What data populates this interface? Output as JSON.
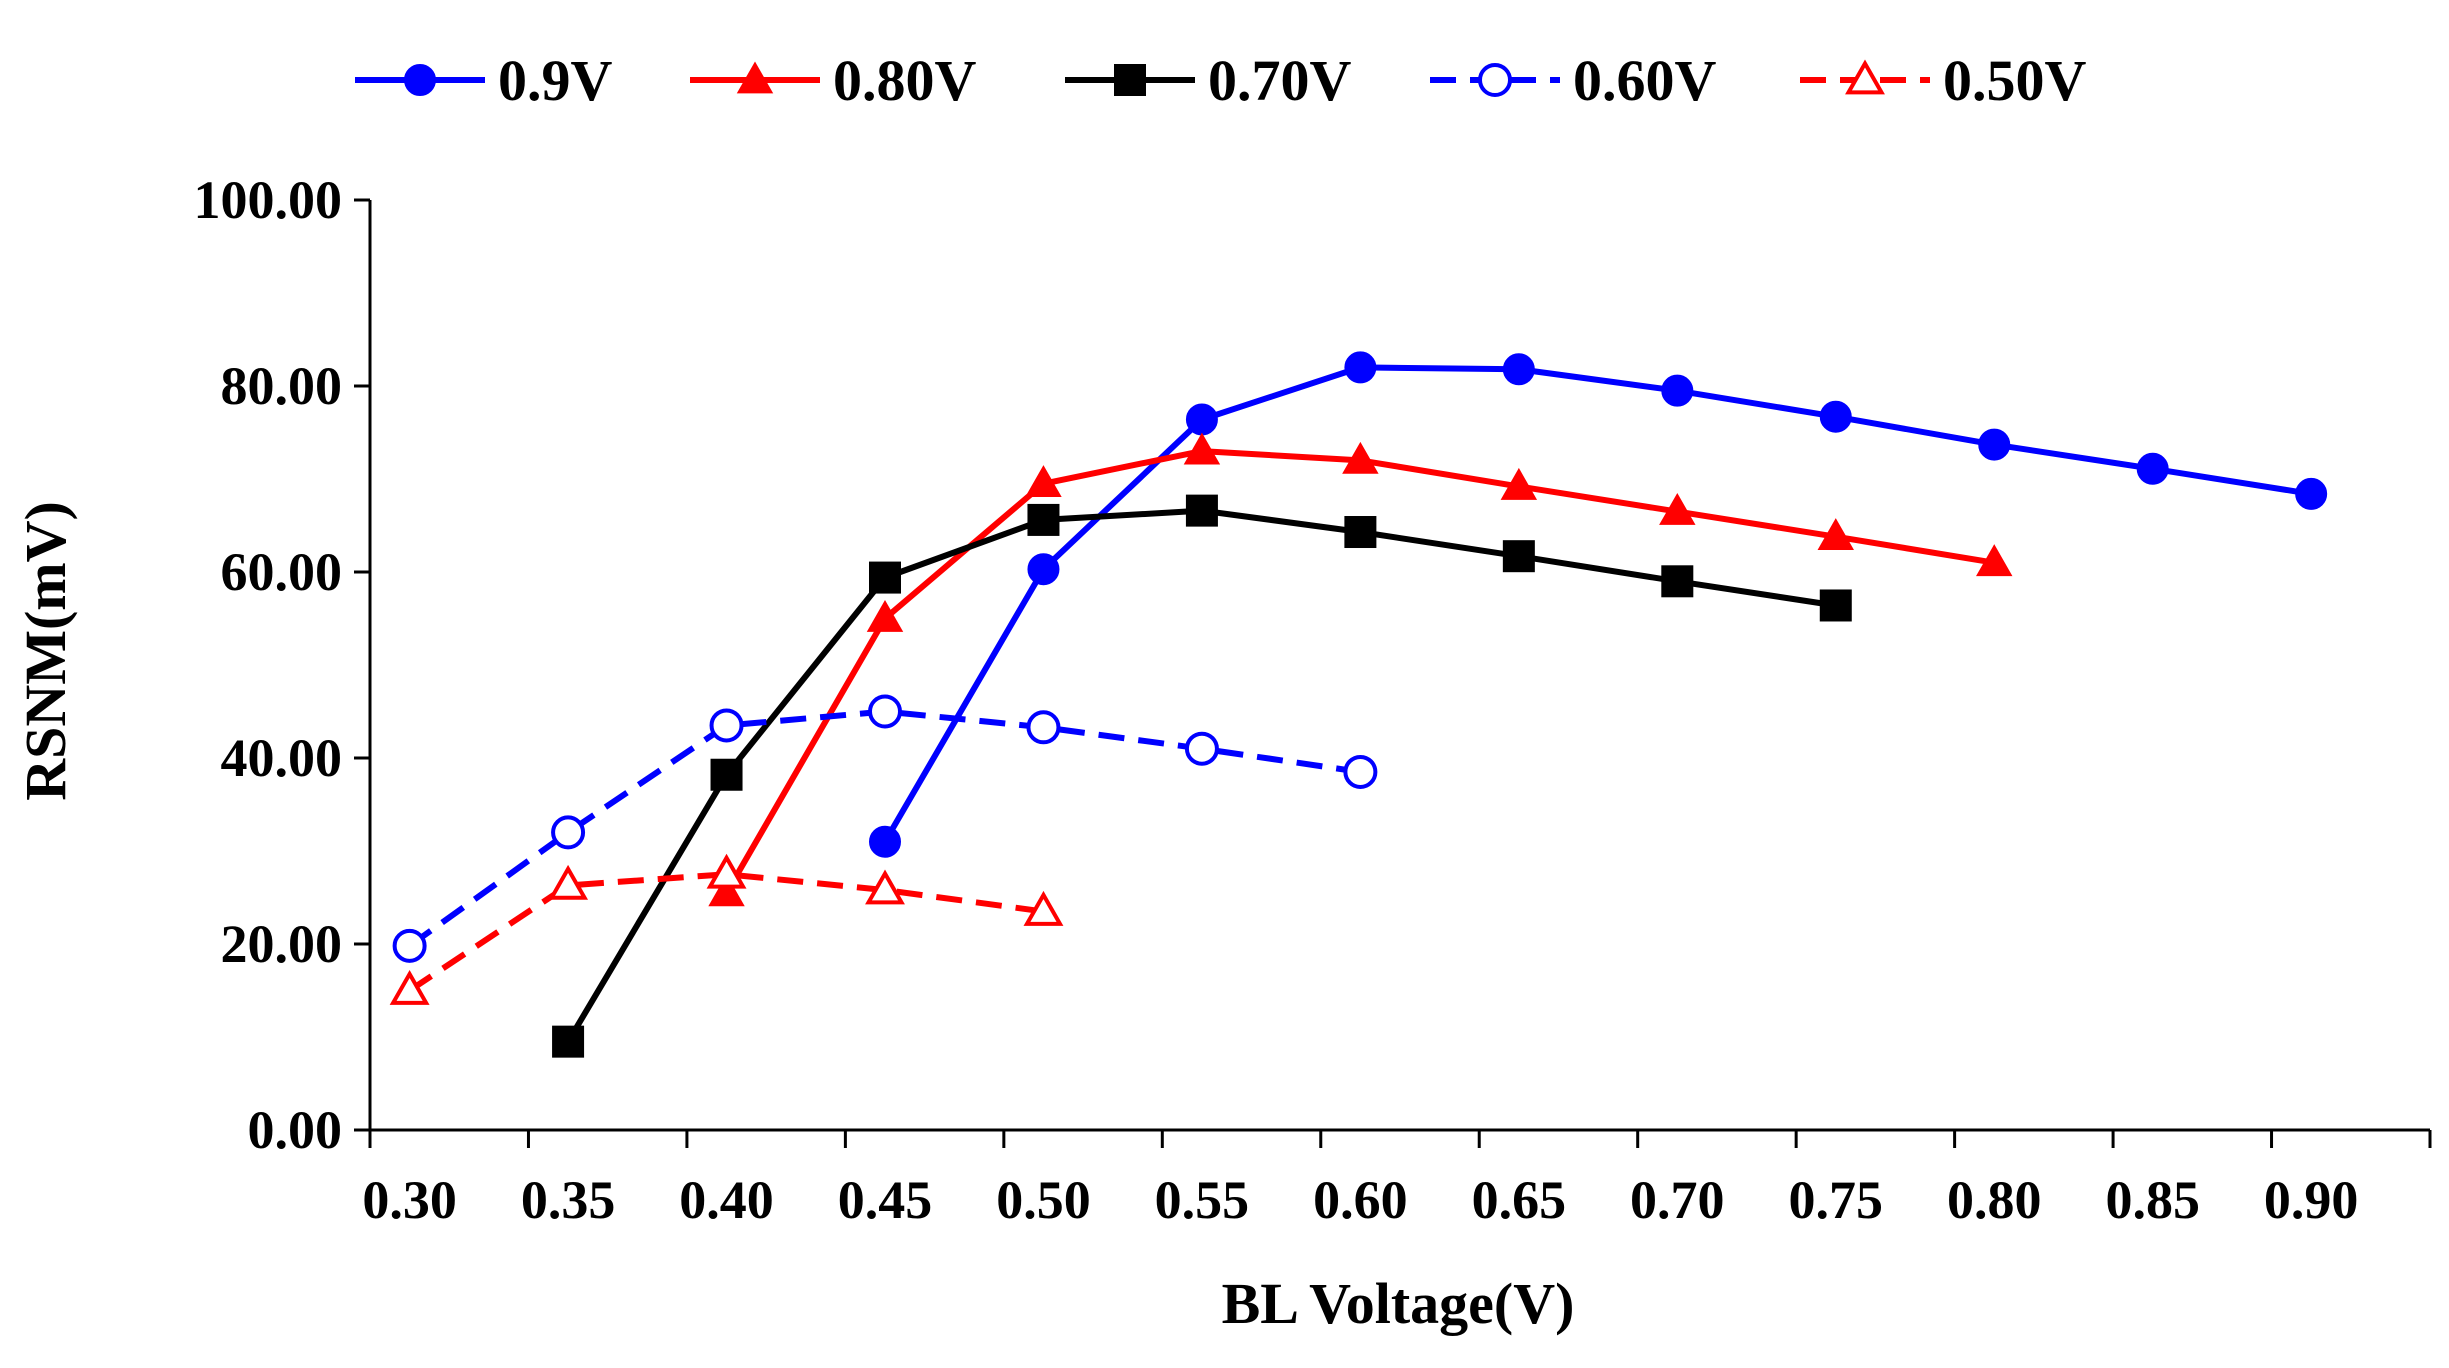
{
  "chart_data": {
    "type": "line",
    "title": "",
    "xlabel": "BL Voltage(V)",
    "ylabel": "RSNM(mV)",
    "x_ticks": [
      "0.30",
      "0.35",
      "0.40",
      "0.45",
      "0.50",
      "0.55",
      "0.60",
      "0.65",
      "0.70",
      "0.75",
      "0.80",
      "0.85",
      "0.90"
    ],
    "y_ticks": [
      "0.00",
      "20.00",
      "40.00",
      "60.00",
      "80.00",
      "100.00"
    ],
    "xlim": [
      0.2875,
      0.9375
    ],
    "ylim": [
      0,
      100
    ],
    "legend_position": "top",
    "series": [
      {
        "name": "0.9V",
        "color": "#0000ff",
        "dashed": false,
        "marker": "circle",
        "filled": true,
        "x": [
          0.45,
          0.5,
          0.55,
          0.6,
          0.65,
          0.7,
          0.75,
          0.8,
          0.85,
          0.9
        ],
        "values": [
          31.0,
          60.3,
          76.4,
          82.0,
          81.8,
          79.5,
          76.7,
          73.7,
          71.1,
          68.4
        ]
      },
      {
        "name": "0.80V",
        "color": "#ff0000",
        "dashed": false,
        "marker": "triangle",
        "filled": true,
        "x": [
          0.4,
          0.45,
          0.5,
          0.55,
          0.6,
          0.65,
          0.7,
          0.75,
          0.8
        ],
        "values": [
          25.5,
          55.0,
          69.5,
          73.0,
          72.0,
          69.2,
          66.5,
          63.8,
          61.0
        ]
      },
      {
        "name": "0.70V",
        "color": "#000000",
        "dashed": false,
        "marker": "square",
        "filled": true,
        "x": [
          0.35,
          0.4,
          0.45,
          0.5,
          0.55,
          0.6,
          0.65,
          0.7,
          0.75
        ],
        "values": [
          9.5,
          38.2,
          59.4,
          65.6,
          66.6,
          64.3,
          61.7,
          59.0,
          56.4
        ]
      },
      {
        "name": "0.60V",
        "color": "#0000ff",
        "dashed": true,
        "marker": "circle",
        "filled": false,
        "x": [
          0.3,
          0.35,
          0.4,
          0.45,
          0.5,
          0.55,
          0.6
        ],
        "values": [
          19.8,
          32.0,
          43.5,
          45.0,
          43.3,
          41.0,
          38.5
        ]
      },
      {
        "name": "0.50V",
        "color": "#ff0000",
        "dashed": true,
        "marker": "triangle",
        "filled": false,
        "x": [
          0.3,
          0.35,
          0.4,
          0.45,
          0.5
        ],
        "values": [
          15.0,
          26.3,
          27.5,
          25.8,
          23.5
        ]
      }
    ]
  }
}
